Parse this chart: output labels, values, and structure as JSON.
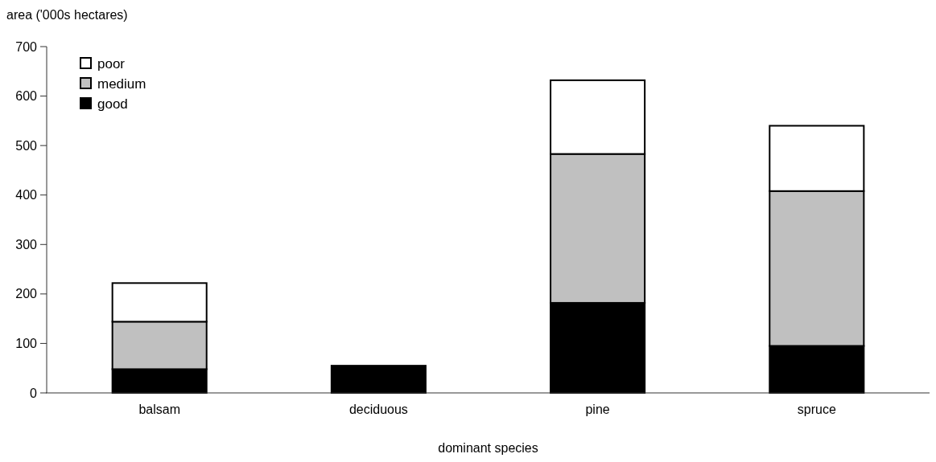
{
  "chart_data": {
    "type": "bar",
    "stacked": true,
    "xlabel": "dominant species",
    "ylabel": "area ('000s hectares)",
    "categories": [
      "balsam",
      "deciduous",
      "pine",
      "spruce"
    ],
    "series": [
      {
        "name": "good",
        "color": "#000000",
        "values": [
          48,
          55,
          182,
          95
        ]
      },
      {
        "name": "medium",
        "color": "#c0c0c0",
        "values": [
          96,
          0,
          301,
          313
        ]
      },
      {
        "name": "poor",
        "color": "#ffffff",
        "values": [
          78,
          0,
          149,
          132
        ]
      }
    ],
    "ylim": [
      0,
      700
    ],
    "yticks": [
      0,
      100,
      200,
      300,
      400,
      500,
      600,
      700
    ],
    "grid": false,
    "legend": "top left"
  }
}
